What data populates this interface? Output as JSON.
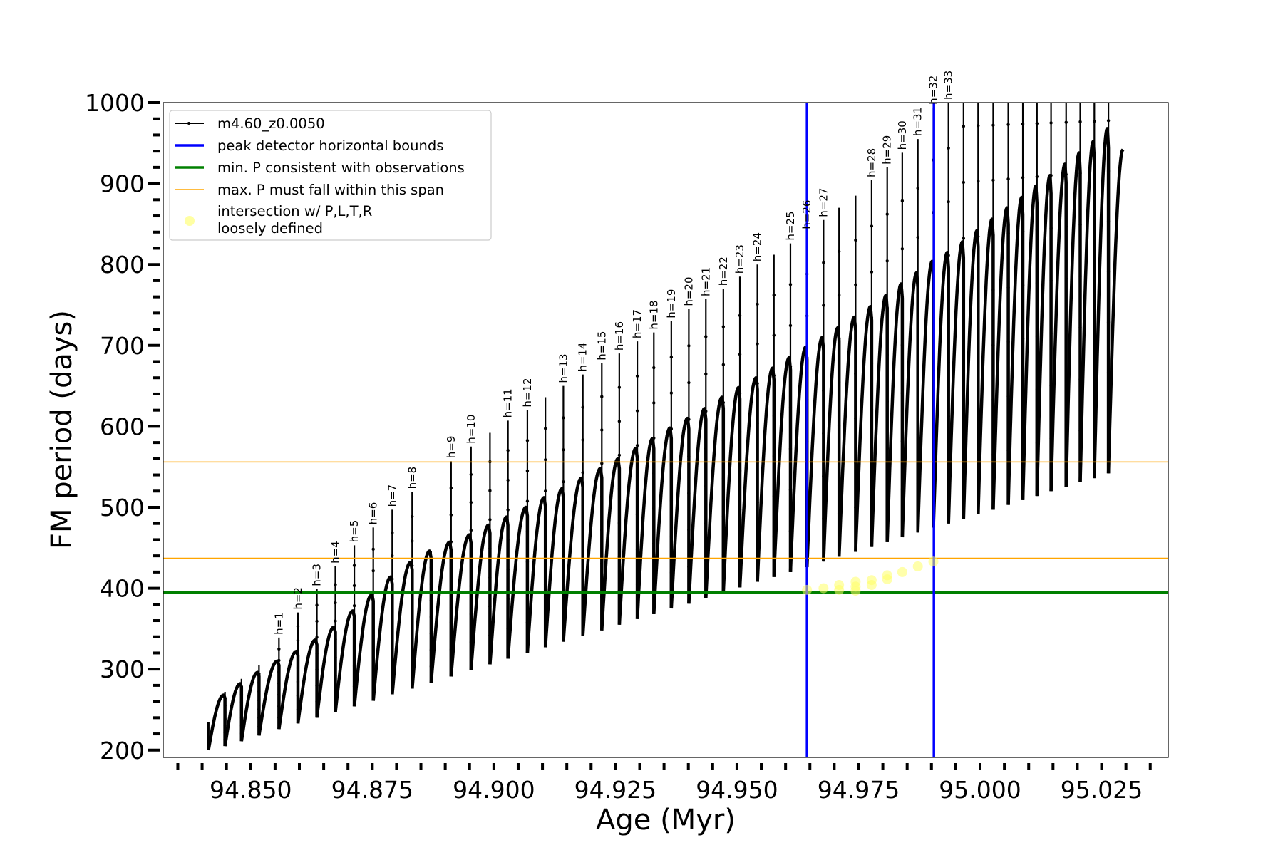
{
  "chart_data": {
    "type": "line",
    "xlabel": "Age (Myr)",
    "ylabel": "FM period (days)",
    "xlim": [
      94.832,
      95.0387
    ],
    "ylim": [
      191,
      1000
    ],
    "x_ticks": [
      "94.850",
      "94.875",
      "94.900",
      "94.925",
      "94.950",
      "94.975",
      "95.000",
      "95.025"
    ],
    "x_tick_values": [
      94.85,
      94.875,
      94.9,
      94.925,
      94.95,
      94.975,
      95.0,
      95.025
    ],
    "y_ticks": [
      "200",
      "300",
      "400",
      "500",
      "600",
      "700",
      "800",
      "900",
      "1000"
    ],
    "y_tick_values": [
      200,
      300,
      400,
      500,
      600,
      700,
      800,
      900,
      1000
    ],
    "grid": false,
    "legend_placement": "upper-left",
    "legend": [
      {
        "label": "m4.60_z0.0050",
        "color": "#000000",
        "kind": "line-marker"
      },
      {
        "label": "peak detector horizontal bounds",
        "color": "#0000ff",
        "kind": "line-thick"
      },
      {
        "label": "min. P consistent with observations",
        "color": "#008000",
        "kind": "line-thick"
      },
      {
        "label": "max. P must fall within this span",
        "color": "#ffa500",
        "kind": "line-thin"
      },
      {
        "label": "intersection w/ P,L,T,R",
        "label2": "loosely defined",
        "color": "#ffff66",
        "kind": "marker"
      }
    ],
    "series": {
      "name": "m4.60_z0.0050",
      "color": "#000000",
      "start": {
        "age": 94.8413,
        "value": 235,
        "low": 200
      },
      "cycle_ages": [
        94.8447,
        94.8481,
        94.8517,
        94.8558,
        94.8597,
        94.8636,
        94.8674,
        94.8713,
        94.8752,
        94.8791,
        94.8832,
        94.8871,
        94.8912,
        94.8953,
        94.8992,
        94.9029,
        94.9069,
        94.9106,
        94.9143,
        94.9183,
        94.9222,
        94.9258,
        94.9295,
        94.9329,
        94.9365,
        94.9401,
        94.9436,
        94.9472,
        94.9506,
        94.9542,
        94.9576,
        94.961,
        94.9644,
        94.9678,
        94.971,
        94.9744,
        94.9777,
        94.9809,
        94.984,
        94.9872,
        94.9904,
        94.9935,
        94.9966,
        94.9996,
        95.0027,
        95.0058,
        95.0088,
        95.0117,
        95.0146,
        95.0177,
        95.0206,
        95.0235,
        95.0264
      ],
      "loop_peaks": [
        268,
        282,
        296,
        310,
        322,
        336,
        352,
        372,
        392,
        414,
        432,
        446,
        457,
        466,
        478,
        488,
        500,
        512,
        523,
        536,
        548,
        560,
        573,
        585,
        598,
        610,
        622,
        636,
        648,
        660,
        672,
        685,
        698,
        710,
        722,
        735,
        748,
        762,
        776,
        790,
        804,
        815,
        828,
        842,
        856,
        870,
        883,
        897,
        910,
        924,
        938,
        952,
        968
      ],
      "troughs": [
        205,
        211,
        218,
        226,
        233,
        240,
        247,
        254,
        261,
        269,
        276,
        283,
        291,
        299,
        306,
        313,
        320,
        327,
        334,
        341,
        348,
        355,
        362,
        368,
        375,
        381,
        388,
        395,
        401,
        408,
        414,
        420,
        426,
        433,
        439,
        445,
        451,
        457,
        463,
        469,
        475,
        480,
        486,
        492,
        497,
        503,
        509,
        514,
        520,
        525,
        531,
        536,
        542
      ],
      "spike_tops": [
        272,
        288,
        305,
        339,
        370,
        399,
        427,
        453,
        475,
        497,
        519,
        446,
        557,
        575,
        592,
        607,
        620,
        636,
        650,
        664,
        678,
        690,
        705,
        716,
        730,
        745,
        757,
        770,
        785,
        800,
        812,
        826,
        840,
        855,
        870,
        885,
        904,
        920,
        938,
        955,
        994,
        1010,
        1040,
        1040,
        1040,
        1040,
        1040,
        1040,
        1040,
        1040,
        1040,
        1040,
        1040
      ],
      "labels": [
        "",
        "",
        "",
        "h=1",
        "h=2",
        "h=3",
        "h=4",
        "h=5",
        "h=6",
        "h=7",
        "h=8",
        "",
        "h=9",
        "h=10",
        "",
        "h=11",
        "h=12",
        "",
        "h=13",
        "h=14",
        "h=15",
        "h=16",
        "h=17",
        "h=18",
        "h=19",
        "h=20",
        "h=21",
        "h=22",
        "h=23",
        "h=24",
        "",
        "h=25",
        "h=26",
        "h=27",
        "",
        "",
        "h=28",
        "h=29",
        "h=30",
        "h=31",
        "h=32",
        "h=33",
        "",
        "",
        "",
        "",
        "",
        "",
        "",
        "",
        "",
        "",
        ""
      ],
      "final": {
        "age": 95.0294,
        "value": 942
      }
    },
    "vertical_lines": [
      {
        "x": 94.9644,
        "color": "#0000ff"
      },
      {
        "x": 94.9905,
        "color": "#0000ff"
      }
    ],
    "horizontal_lines": [
      {
        "y": 395,
        "color": "#008000",
        "kind": "thick"
      },
      {
        "y": 437,
        "color": "#ffa500",
        "kind": "thin"
      },
      {
        "y": 556,
        "color": "#ffa500",
        "kind": "thin"
      }
    ],
    "intersection_points": {
      "color": "#ffff66",
      "ages": [
        94.9644,
        94.9678,
        94.971,
        94.971,
        94.9744,
        94.9744,
        94.9744,
        94.9777,
        94.9777,
        94.9809,
        94.9809,
        94.984,
        94.9872,
        94.9904
      ],
      "values": [
        398,
        400,
        398,
        404,
        397,
        402,
        408,
        404,
        410,
        411,
        416,
        420,
        427,
        433
      ]
    }
  }
}
